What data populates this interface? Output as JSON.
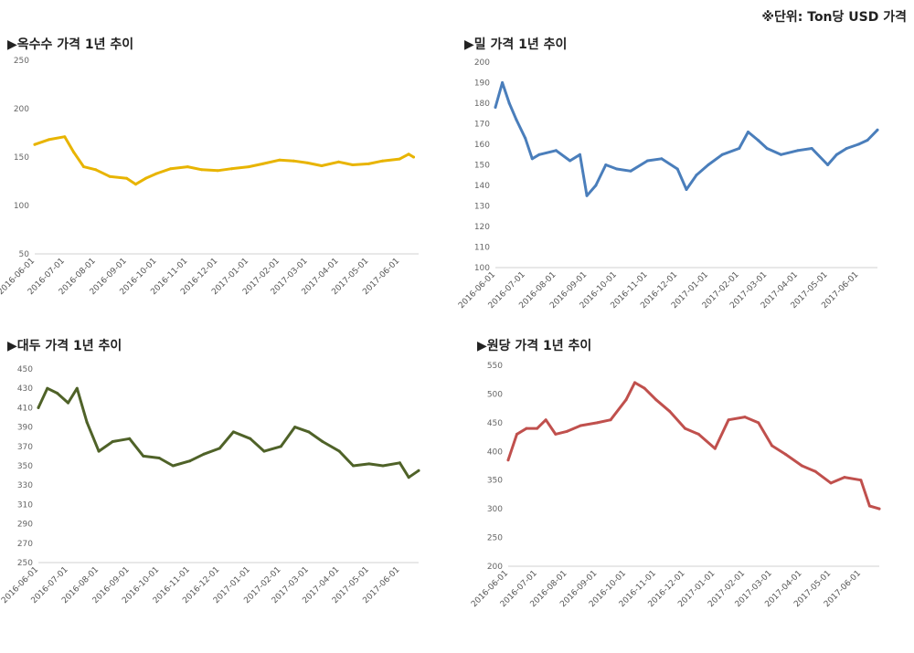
{
  "unit_note": "※단위: Ton당 USD 가격",
  "chart_data": [
    {
      "type": "line",
      "title": "▶옥수수 가격 1년 추이",
      "color": "#e8b400",
      "ylim": [
        50,
        250
      ],
      "yticks": [
        50,
        100,
        150,
        200,
        250
      ],
      "xticks": [
        "2016-06-01",
        "2016-07-01",
        "2016-08-01",
        "2016-09-01",
        "2016-10-01",
        "2016-11-01",
        "2016-12-01",
        "2017-01-01",
        "2017-02-01",
        "2017-03-01",
        "2017-04-01",
        "2017-05-01",
        "2017-06-01"
      ],
      "x": [
        "2016-06-01",
        "2016-06-15",
        "2016-07-01",
        "2016-07-10",
        "2016-07-20",
        "2016-08-01",
        "2016-08-15",
        "2016-09-01",
        "2016-09-10",
        "2016-09-20",
        "2016-10-01",
        "2016-10-15",
        "2016-11-01",
        "2016-11-15",
        "2016-12-01",
        "2016-12-15",
        "2017-01-01",
        "2017-01-15",
        "2017-02-01",
        "2017-02-15",
        "2017-03-01",
        "2017-03-15",
        "2017-04-01",
        "2017-04-15",
        "2017-05-01",
        "2017-05-15",
        "2017-06-01",
        "2017-06-10",
        "2017-06-15"
      ],
      "values": [
        163,
        168,
        171,
        155,
        140,
        137,
        130,
        128,
        122,
        128,
        133,
        138,
        140,
        137,
        136,
        138,
        140,
        143,
        147,
        146,
        144,
        141,
        145,
        142,
        143,
        146,
        148,
        153,
        150
      ],
      "grid": false
    },
    {
      "type": "line",
      "title": "▶밀 가격 1년 추이",
      "color": "#4a7ebb",
      "ylim": [
        100,
        200
      ],
      "yticks": [
        100,
        110,
        120,
        130,
        140,
        150,
        160,
        170,
        180,
        190,
        200
      ],
      "xticks": [
        "2016-06-01",
        "2016-07-01",
        "2016-08-01",
        "2016-09-01",
        "2016-10-01",
        "2016-11-01",
        "2016-12-01",
        "2017-01-01",
        "2017-02-01",
        "2017-03-01",
        "2017-04-01",
        "2017-05-01",
        "2017-06-01"
      ],
      "x": [
        "2016-06-01",
        "2016-06-08",
        "2016-06-15",
        "2016-06-22",
        "2016-07-01",
        "2016-07-08",
        "2016-07-15",
        "2016-08-01",
        "2016-08-15",
        "2016-08-25",
        "2016-09-01",
        "2016-09-10",
        "2016-09-20",
        "2016-10-01",
        "2016-10-15",
        "2016-11-01",
        "2016-11-15",
        "2016-12-01",
        "2016-12-10",
        "2016-12-20",
        "2017-01-01",
        "2017-01-15",
        "2017-02-01",
        "2017-02-10",
        "2017-02-20",
        "2017-03-01",
        "2017-03-15",
        "2017-04-01",
        "2017-04-15",
        "2017-05-01",
        "2017-05-10",
        "2017-05-20",
        "2017-06-01",
        "2017-06-10",
        "2017-06-20"
      ],
      "values": [
        178,
        190,
        180,
        172,
        163,
        153,
        155,
        157,
        152,
        155,
        135,
        140,
        150,
        148,
        147,
        152,
        153,
        148,
        138,
        145,
        150,
        155,
        158,
        166,
        162,
        158,
        155,
        157,
        158,
        150,
        155,
        158,
        160,
        162,
        167
      ],
      "grid": false
    },
    {
      "type": "line",
      "title": "▶대두 가격 1년 추이",
      "color": "#4f6228",
      "ylim": [
        250,
        450
      ],
      "yticks": [
        250,
        270,
        290,
        310,
        330,
        350,
        370,
        390,
        410,
        430,
        450
      ],
      "xticks": [
        "2016-06-01",
        "2016-07-01",
        "2016-08-01",
        "2016-09-01",
        "2016-10-01",
        "2016-11-01",
        "2016-12-01",
        "2017-01-01",
        "2017-02-01",
        "2017-03-01",
        "2017-04-01",
        "2017-05-01",
        "2017-06-01"
      ],
      "x": [
        "2016-06-01",
        "2016-06-10",
        "2016-06-20",
        "2016-07-01",
        "2016-07-10",
        "2016-07-20",
        "2016-08-01",
        "2016-08-15",
        "2016-09-01",
        "2016-09-15",
        "2016-10-01",
        "2016-10-15",
        "2016-11-01",
        "2016-11-15",
        "2016-12-01",
        "2016-12-15",
        "2017-01-01",
        "2017-01-15",
        "2017-02-01",
        "2017-02-15",
        "2017-03-01",
        "2017-03-15",
        "2017-04-01",
        "2017-04-15",
        "2017-05-01",
        "2017-05-15",
        "2017-06-01",
        "2017-06-10",
        "2017-06-20"
      ],
      "values": [
        410,
        430,
        425,
        415,
        430,
        395,
        365,
        375,
        378,
        360,
        358,
        350,
        355,
        362,
        368,
        385,
        378,
        365,
        370,
        390,
        385,
        375,
        365,
        350,
        352,
        350,
        353,
        338,
        345
      ],
      "grid": false
    },
    {
      "type": "line",
      "title": "▶원당 가격 1년 추이",
      "color": "#c0504d",
      "ylim": [
        200,
        550
      ],
      "yticks": [
        200,
        250,
        300,
        350,
        400,
        450,
        500,
        550
      ],
      "xticks": [
        "2016-06-01",
        "2016-07-01",
        "2016-08-01",
        "2016-09-01",
        "2016-10-01",
        "2016-11-01",
        "2016-12-01",
        "2017-01-01",
        "2017-02-01",
        "2017-03-01",
        "2017-04-01",
        "2017-05-01",
        "2017-06-01"
      ],
      "x": [
        "2016-06-01",
        "2016-06-10",
        "2016-06-20",
        "2016-07-01",
        "2016-07-10",
        "2016-07-20",
        "2016-08-01",
        "2016-08-15",
        "2016-09-01",
        "2016-09-15",
        "2016-10-01",
        "2016-10-10",
        "2016-10-20",
        "2016-11-01",
        "2016-11-15",
        "2016-12-01",
        "2016-12-15",
        "2017-01-01",
        "2017-01-15",
        "2017-02-01",
        "2017-02-15",
        "2017-03-01",
        "2017-03-15",
        "2017-04-01",
        "2017-04-15",
        "2017-05-01",
        "2017-05-15",
        "2017-06-01",
        "2017-06-10",
        "2017-06-20"
      ],
      "values": [
        385,
        430,
        440,
        440,
        455,
        430,
        435,
        445,
        450,
        455,
        490,
        520,
        510,
        490,
        470,
        440,
        430,
        405,
        455,
        460,
        450,
        410,
        395,
        375,
        365,
        345,
        355,
        350,
        305,
        300
      ],
      "grid": false
    }
  ]
}
